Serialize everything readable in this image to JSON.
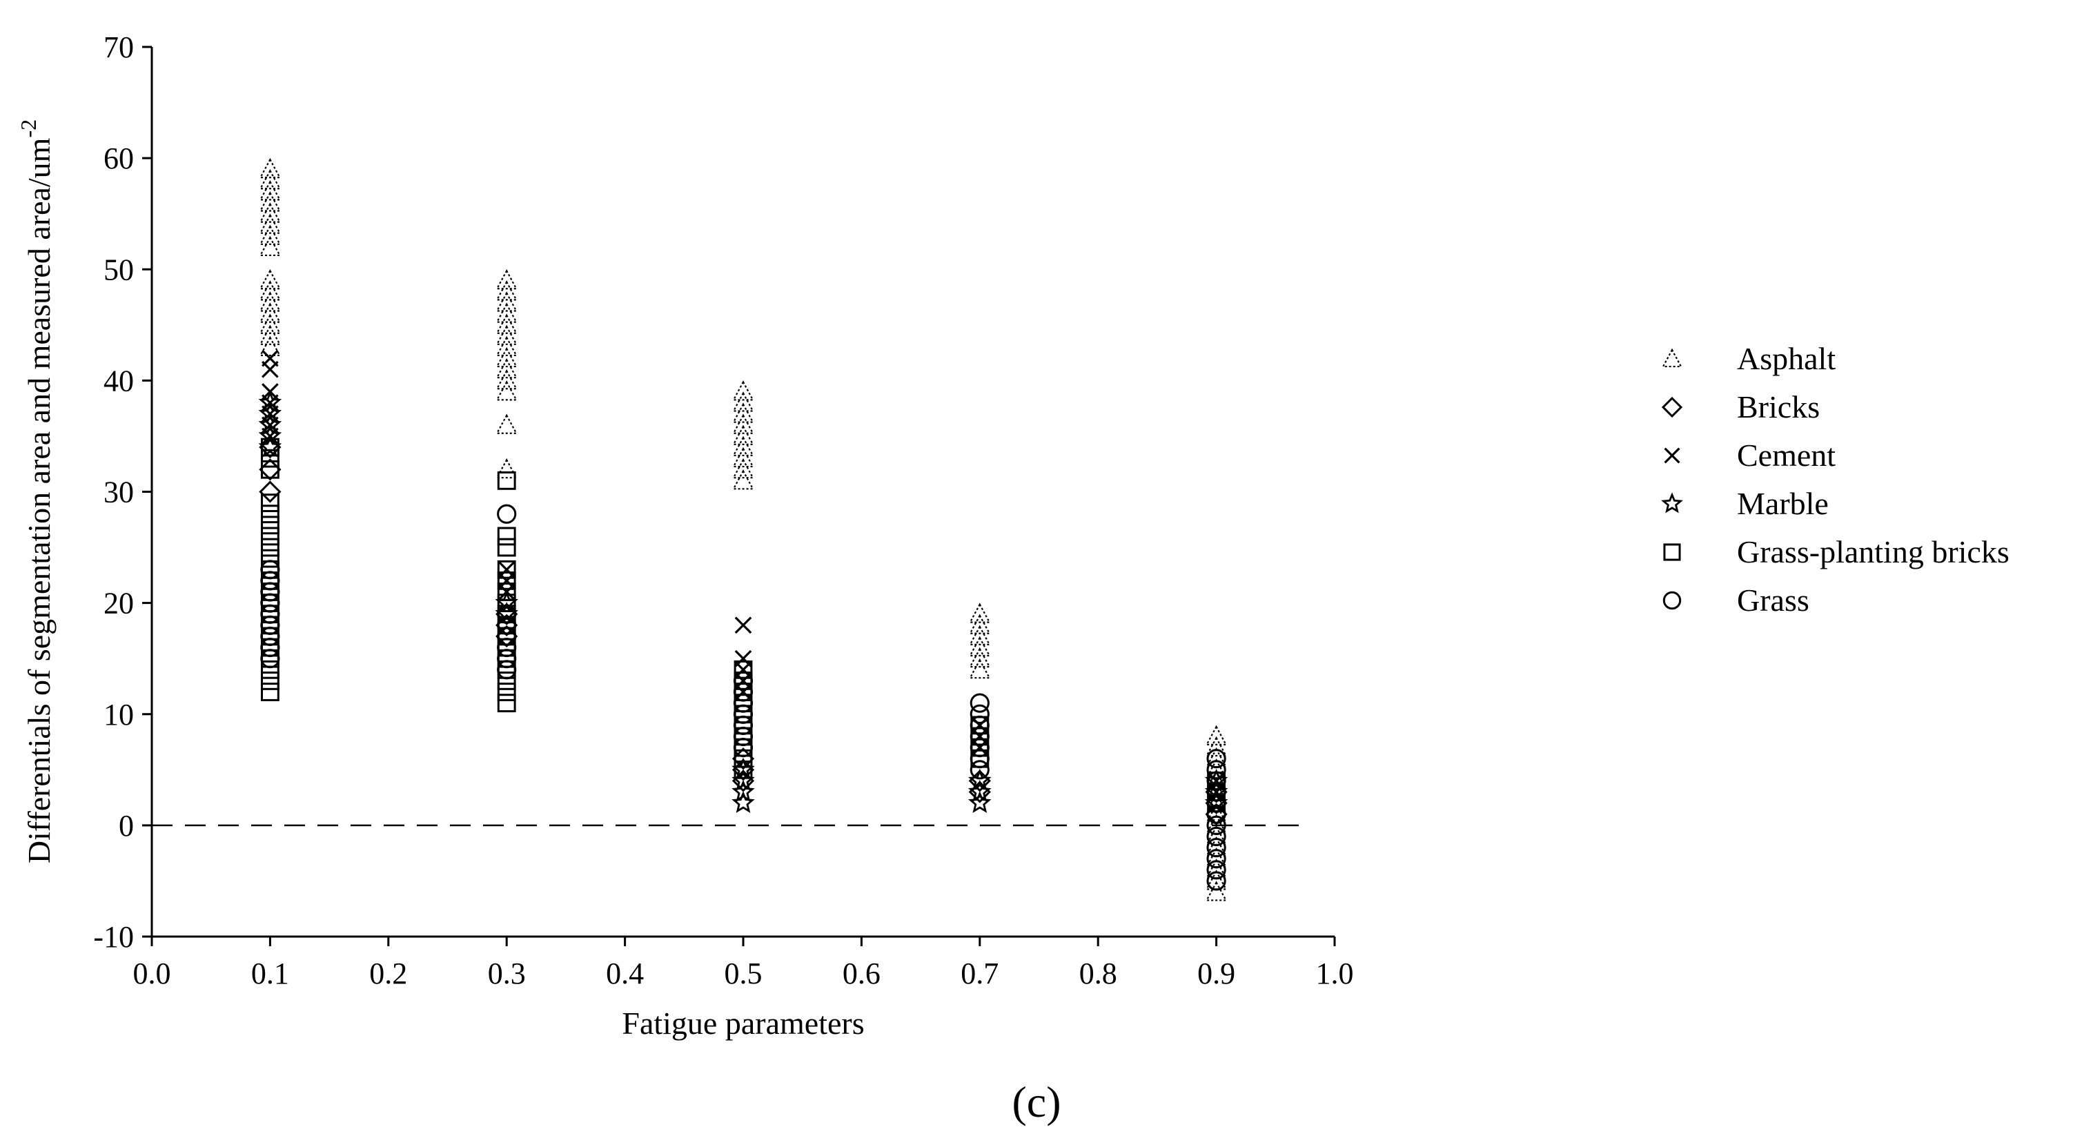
{
  "panel_label": "(c)",
  "chart_data": {
    "type": "scatter",
    "xlabel": "Fatigue parameters",
    "ylabel": "Differentials of segmentation area and measured area/um",
    "ylabel_exponent": "-2",
    "xlim": [
      0.0,
      1.0
    ],
    "ylim": [
      -10,
      70
    ],
    "x_ticks": [
      "0.0",
      "0.1",
      "0.2",
      "0.3",
      "0.4",
      "0.5",
      "0.6",
      "0.7",
      "0.8",
      "0.9",
      "1.0"
    ],
    "y_ticks": [
      "-10",
      "0",
      "10",
      "20",
      "30",
      "40",
      "50",
      "60",
      "70"
    ],
    "reference_line": {
      "y": 0,
      "style": "dashed"
    },
    "legend_position": "right",
    "series": [
      {
        "name": "Asphalt",
        "marker": "triangle",
        "points": [
          [
            0.1,
            59
          ],
          [
            0.1,
            58
          ],
          [
            0.1,
            57
          ],
          [
            0.1,
            56
          ],
          [
            0.1,
            55
          ],
          [
            0.1,
            54
          ],
          [
            0.1,
            53
          ],
          [
            0.1,
            52
          ],
          [
            0.1,
            49
          ],
          [
            0.1,
            48
          ],
          [
            0.1,
            47
          ],
          [
            0.1,
            46
          ],
          [
            0.1,
            45
          ],
          [
            0.1,
            44
          ],
          [
            0.1,
            43
          ],
          [
            0.3,
            49
          ],
          [
            0.3,
            48
          ],
          [
            0.3,
            47
          ],
          [
            0.3,
            46
          ],
          [
            0.3,
            45
          ],
          [
            0.3,
            44
          ],
          [
            0.3,
            43
          ],
          [
            0.3,
            42
          ],
          [
            0.3,
            41
          ],
          [
            0.3,
            40
          ],
          [
            0.3,
            39
          ],
          [
            0.3,
            36
          ],
          [
            0.3,
            32
          ],
          [
            0.5,
            39
          ],
          [
            0.5,
            38
          ],
          [
            0.5,
            37
          ],
          [
            0.5,
            36
          ],
          [
            0.5,
            35
          ],
          [
            0.5,
            34
          ],
          [
            0.5,
            33
          ],
          [
            0.5,
            32
          ],
          [
            0.5,
            31
          ],
          [
            0.7,
            19
          ],
          [
            0.7,
            18
          ],
          [
            0.7,
            17
          ],
          [
            0.7,
            16
          ],
          [
            0.7,
            15
          ],
          [
            0.7,
            14
          ],
          [
            0.9,
            8
          ],
          [
            0.9,
            7
          ],
          [
            0.9,
            6
          ],
          [
            0.9,
            5
          ],
          [
            0.9,
            4
          ],
          [
            0.9,
            3
          ],
          [
            0.9,
            2
          ],
          [
            0.9,
            1
          ],
          [
            0.9,
            0
          ],
          [
            0.9,
            -1
          ],
          [
            0.9,
            -2
          ],
          [
            0.9,
            -3
          ],
          [
            0.9,
            -4
          ],
          [
            0.9,
            -5
          ],
          [
            0.9,
            -6
          ]
        ]
      },
      {
        "name": "Bricks",
        "marker": "diamond",
        "points": [
          [
            0.1,
            34
          ],
          [
            0.1,
            32
          ],
          [
            0.1,
            30
          ],
          [
            0.3,
            19
          ],
          [
            0.3,
            18
          ],
          [
            0.3,
            17
          ],
          [
            0.5,
            6
          ],
          [
            0.5,
            5
          ],
          [
            0.5,
            4
          ],
          [
            0.7,
            4
          ],
          [
            0.7,
            3
          ],
          [
            0.9,
            3
          ],
          [
            0.9,
            2
          ],
          [
            0.9,
            1
          ]
        ]
      },
      {
        "name": "Cement",
        "marker": "cross",
        "points": [
          [
            0.1,
            42
          ],
          [
            0.1,
            41
          ],
          [
            0.1,
            39
          ],
          [
            0.1,
            38
          ],
          [
            0.1,
            37
          ],
          [
            0.1,
            36
          ],
          [
            0.1,
            35
          ],
          [
            0.3,
            23
          ],
          [
            0.3,
            22
          ],
          [
            0.3,
            21
          ],
          [
            0.5,
            18
          ],
          [
            0.5,
            15
          ],
          [
            0.5,
            14
          ],
          [
            0.5,
            13
          ],
          [
            0.5,
            12
          ],
          [
            0.7,
            9
          ],
          [
            0.7,
            8
          ],
          [
            0.7,
            7
          ],
          [
            0.9,
            4
          ],
          [
            0.9,
            3
          ]
        ]
      },
      {
        "name": "Marble",
        "marker": "star",
        "points": [
          [
            0.1,
            38
          ],
          [
            0.1,
            37
          ],
          [
            0.1,
            36
          ],
          [
            0.1,
            35
          ],
          [
            0.1,
            34
          ],
          [
            0.3,
            20
          ],
          [
            0.3,
            19
          ],
          [
            0.5,
            5
          ],
          [
            0.5,
            4
          ],
          [
            0.5,
            3
          ],
          [
            0.5,
            2
          ],
          [
            0.7,
            4
          ],
          [
            0.7,
            3
          ],
          [
            0.7,
            2
          ],
          [
            0.9,
            4
          ],
          [
            0.9,
            3
          ],
          [
            0.9,
            2
          ]
        ]
      },
      {
        "name": "Grass-planting bricks",
        "marker": "square",
        "points": [
          [
            0.1,
            34
          ],
          [
            0.1,
            33
          ],
          [
            0.1,
            32
          ],
          [
            0.1,
            29
          ],
          [
            0.1,
            28
          ],
          [
            0.1,
            27
          ],
          [
            0.1,
            26
          ],
          [
            0.1,
            25
          ],
          [
            0.1,
            24
          ],
          [
            0.1,
            23
          ],
          [
            0.1,
            22
          ],
          [
            0.1,
            21
          ],
          [
            0.1,
            20
          ],
          [
            0.1,
            19
          ],
          [
            0.1,
            18
          ],
          [
            0.1,
            17
          ],
          [
            0.1,
            16
          ],
          [
            0.1,
            15
          ],
          [
            0.1,
            14
          ],
          [
            0.1,
            13
          ],
          [
            0.1,
            12
          ],
          [
            0.3,
            31
          ],
          [
            0.3,
            26
          ],
          [
            0.3,
            25
          ],
          [
            0.3,
            23
          ],
          [
            0.3,
            22
          ],
          [
            0.3,
            21
          ],
          [
            0.3,
            20
          ],
          [
            0.3,
            19
          ],
          [
            0.3,
            18
          ],
          [
            0.3,
            17
          ],
          [
            0.3,
            16
          ],
          [
            0.3,
            15
          ],
          [
            0.3,
            14
          ],
          [
            0.3,
            13
          ],
          [
            0.3,
            12
          ],
          [
            0.3,
            11
          ],
          [
            0.5,
            14
          ],
          [
            0.5,
            13
          ],
          [
            0.5,
            12
          ],
          [
            0.5,
            11
          ],
          [
            0.5,
            10
          ],
          [
            0.5,
            9
          ],
          [
            0.5,
            8
          ],
          [
            0.5,
            7
          ],
          [
            0.5,
            6
          ],
          [
            0.5,
            5
          ],
          [
            0.7,
            9
          ],
          [
            0.7,
            8
          ],
          [
            0.7,
            7
          ],
          [
            0.7,
            6
          ],
          [
            0.9,
            4
          ],
          [
            0.9,
            3
          ],
          [
            0.9,
            2
          ]
        ]
      },
      {
        "name": "Grass",
        "marker": "circle",
        "points": [
          [
            0.1,
            23
          ],
          [
            0.1,
            22
          ],
          [
            0.1,
            21
          ],
          [
            0.1,
            20
          ],
          [
            0.1,
            19
          ],
          [
            0.1,
            18
          ],
          [
            0.1,
            17
          ],
          [
            0.1,
            16
          ],
          [
            0.1,
            15
          ],
          [
            0.3,
            28
          ],
          [
            0.3,
            19
          ],
          [
            0.3,
            18
          ],
          [
            0.3,
            17
          ],
          [
            0.3,
            16
          ],
          [
            0.3,
            15
          ],
          [
            0.3,
            14
          ],
          [
            0.5,
            13
          ],
          [
            0.5,
            12
          ],
          [
            0.5,
            11
          ],
          [
            0.5,
            10
          ],
          [
            0.5,
            9
          ],
          [
            0.5,
            8
          ],
          [
            0.5,
            7
          ],
          [
            0.7,
            11
          ],
          [
            0.7,
            10
          ],
          [
            0.7,
            9
          ],
          [
            0.7,
            8
          ],
          [
            0.7,
            7
          ],
          [
            0.7,
            6
          ],
          [
            0.7,
            5
          ],
          [
            0.9,
            6
          ],
          [
            0.9,
            5
          ],
          [
            0.9,
            4
          ],
          [
            0.9,
            3
          ],
          [
            0.9,
            2
          ],
          [
            0.9,
            1
          ],
          [
            0.9,
            0
          ],
          [
            0.9,
            -1
          ],
          [
            0.9,
            -2
          ],
          [
            0.9,
            -3
          ],
          [
            0.9,
            -4
          ],
          [
            0.9,
            -5
          ]
        ]
      }
    ]
  }
}
